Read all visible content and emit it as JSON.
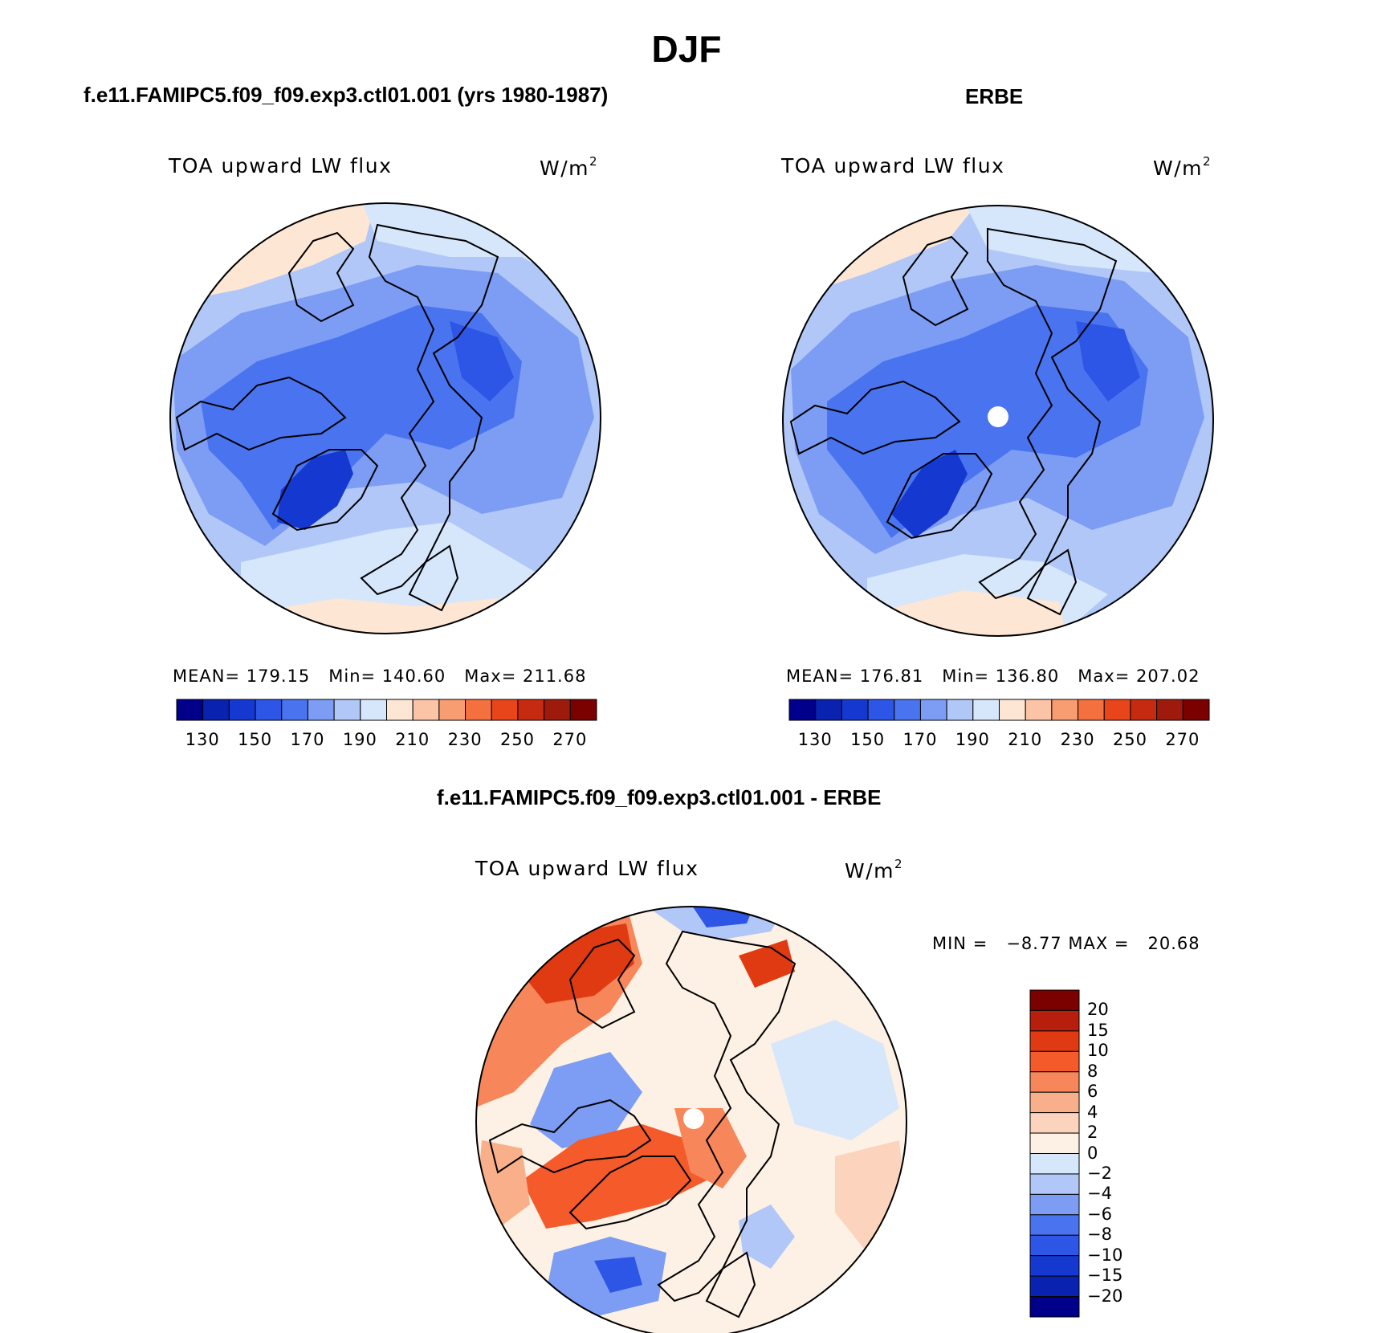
{
  "figure": {
    "title": "DJF"
  },
  "panels": [
    {
      "id": "model",
      "title": "f.e11.FAMIPC5.f09_f09.exp3.ctl01.001 (yrs 1980-1987)",
      "field": "TOA upward LW flux",
      "units_base": "W/m",
      "units_exp": "2",
      "stats": "MEAN= 179.15   Min= 140.60   Max= 211.68",
      "colorbar_ticks": [
        "130",
        "150",
        "170",
        "190",
        "210",
        "230",
        "250",
        "270"
      ],
      "colorbar_colors": [
        "#00008b",
        "#0a22b0",
        "#1538d0",
        "#2d55e6",
        "#4a74ef",
        "#7c9df3",
        "#b0c7f8",
        "#d6e6fb",
        "#fde6d4",
        "#fbc4a7",
        "#f89c72",
        "#f4703f",
        "#e8461a",
        "#c62a10",
        "#9e1a0c",
        "#7b0000"
      ]
    },
    {
      "id": "obs",
      "title": "ERBE",
      "field": "TOA upward LW flux",
      "units_base": "W/m",
      "units_exp": "2",
      "stats": "MEAN= 176.81   Min= 136.80   Max= 207.02",
      "colorbar_ticks": [
        "130",
        "150",
        "170",
        "190",
        "210",
        "230",
        "250",
        "270"
      ],
      "colorbar_colors": [
        "#00008b",
        "#0a22b0",
        "#1538d0",
        "#2d55e6",
        "#4a74ef",
        "#7c9df3",
        "#b0c7f8",
        "#d6e6fb",
        "#fde6d4",
        "#fbc4a7",
        "#f89c72",
        "#f4703f",
        "#e8461a",
        "#c62a10",
        "#9e1a0c",
        "#7b0000"
      ]
    },
    {
      "id": "diff",
      "title": "f.e11.FAMIPC5.f09_f09.exp3.ctl01.001 - ERBE",
      "field": "TOA upward LW flux",
      "units_base": "W/m",
      "units_exp": "2",
      "stats": "MIN =   −8.77 MAX =   20.68",
      "colorbar_ticks": [
        "20",
        "15",
        "10",
        "8",
        "6",
        "4",
        "2",
        "0",
        "−2",
        "−4",
        "−6",
        "−8",
        "−10",
        "−15",
        "−20"
      ],
      "colorbar_colors": [
        "#7b0000",
        "#b81e0c",
        "#e03a12",
        "#f45a2a",
        "#f7875a",
        "#f9b08a",
        "#fcd4bd",
        "#fdf0e4",
        "#d6e6fb",
        "#b0c7f8",
        "#7c9df3",
        "#4a74ef",
        "#2d55e6",
        "#1538d0",
        "#0a22b0",
        "#00008b"
      ]
    }
  ],
  "map_colors": {
    "coastline": "#000000",
    "polar_hole": "#ffffff",
    "warm_light": "#fde6d4",
    "warm_mid": "#f89c72",
    "warm_strong": "#e8461a",
    "cool_light": "#d6e6fb",
    "cool_mid": "#7c9df3",
    "cool_strong": "#2d55e6",
    "cool_deep": "#1538d0"
  }
}
